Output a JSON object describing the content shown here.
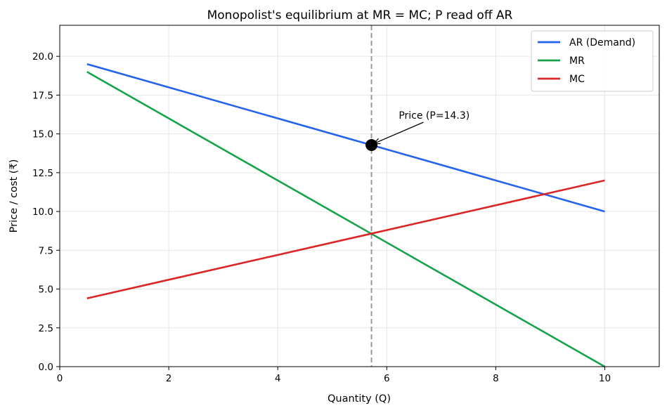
{
  "chart_data": {
    "type": "line",
    "title": "Monopolist's equilibrium at MR = MC; P read off AR",
    "xlabel": "Quantity (Q)",
    "ylabel": "Price / cost (₹)",
    "xlim": [
      0,
      11
    ],
    "ylim": [
      0,
      22
    ],
    "xticks": [
      0,
      2,
      4,
      6,
      8,
      10
    ],
    "yticks": [
      0,
      2.5,
      5,
      7.5,
      10,
      12.5,
      15,
      17.5,
      20
    ],
    "xtick_labels": [
      "0",
      "2",
      "4",
      "6",
      "8",
      "10"
    ],
    "ytick_labels": [
      "0.0",
      "2.5",
      "5.0",
      "7.5",
      "10.0",
      "12.5",
      "15.0",
      "17.5",
      "20.0"
    ],
    "grid": true,
    "legend_position": "top-right",
    "series": [
      {
        "name": "AR (Demand)",
        "color": "#2563eb",
        "x": [
          0.5,
          10
        ],
        "y": [
          19.5,
          10
        ]
      },
      {
        "name": "MR",
        "color": "#16a34a",
        "x": [
          0.5,
          10
        ],
        "y": [
          19,
          0
        ]
      },
      {
        "name": "MC",
        "color": "#dc2626",
        "x": [
          0.5,
          10
        ],
        "y": [
          4.4,
          12
        ]
      }
    ],
    "equilibrium": {
      "x": 5.72,
      "y": 14.28,
      "vline_color": "#999999"
    },
    "annotation": {
      "text": "Price (P=14.3)",
      "text_x": 6.22,
      "text_y": 16.2
    }
  }
}
